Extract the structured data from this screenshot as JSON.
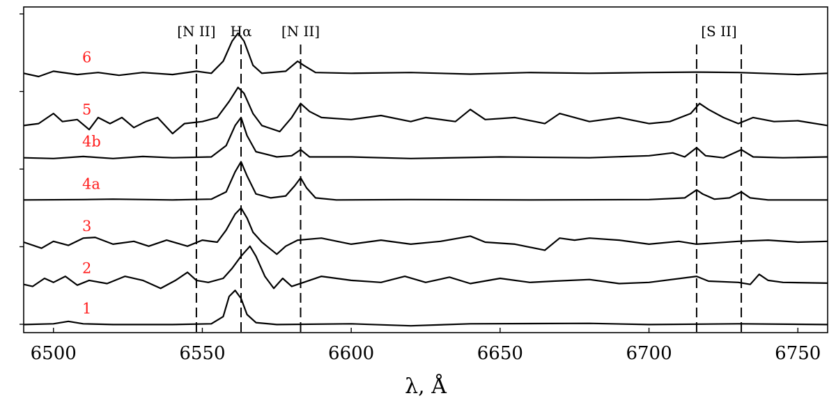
{
  "chart_data": {
    "type": "line",
    "title": "",
    "xlabel": "λ, Å",
    "ylabel": "",
    "xlim": [
      6490,
      6760
    ],
    "ylim": [
      0,
      8.1
    ],
    "xticks": [
      6500,
      6550,
      6600,
      6650,
      6700,
      6750
    ],
    "ytick_count": 5,
    "grid": false,
    "line_markers": [
      {
        "label": "[N II]",
        "x": 6548
      },
      {
        "label": "Hα",
        "x": 6563
      },
      {
        "label": "[N II]",
        "x": 6583
      },
      {
        "label": "[S II]",
        "x": 6716
      },
      {
        "label": "[S II]",
        "x": 6731
      }
    ],
    "marker_labels": [
      {
        "text": "[N II]",
        "x": 6548
      },
      {
        "text": "Hα",
        "x": 6563
      },
      {
        "text": "[N II]",
        "x": 6583
      },
      {
        "text": "[S II]",
        "x": 6723.5
      }
    ],
    "label_color": "#ff1a1a",
    "series": [
      {
        "name": "1",
        "offset": 0.2,
        "points": [
          [
            6490,
            0
          ],
          [
            6500,
            0.02
          ],
          [
            6505,
            0.08
          ],
          [
            6510,
            0.02
          ],
          [
            6520,
            0
          ],
          [
            6540,
            0
          ],
          [
            6553,
            0.02
          ],
          [
            6557,
            0.2
          ],
          [
            6559,
            0.7
          ],
          [
            6561,
            0.85
          ],
          [
            6563,
            0.65
          ],
          [
            6565,
            0.25
          ],
          [
            6568,
            0.05
          ],
          [
            6575,
            0
          ],
          [
            6600,
            0.02
          ],
          [
            6620,
            -0.03
          ],
          [
            6640,
            0.02
          ],
          [
            6680,
            0.03
          ],
          [
            6700,
            0
          ],
          [
            6730,
            0.02
          ],
          [
            6760,
            0
          ]
        ]
      },
      {
        "name": "2",
        "offset": 1.2,
        "points": [
          [
            6490,
            0
          ],
          [
            6493,
            -0.05
          ],
          [
            6497,
            0.15
          ],
          [
            6500,
            0.05
          ],
          [
            6504,
            0.2
          ],
          [
            6508,
            -0.02
          ],
          [
            6512,
            0.1
          ],
          [
            6518,
            0.02
          ],
          [
            6524,
            0.2
          ],
          [
            6530,
            0.1
          ],
          [
            6536,
            -0.1
          ],
          [
            6541,
            0.1
          ],
          [
            6545,
            0.3
          ],
          [
            6548,
            0.1
          ],
          [
            6552,
            0.05
          ],
          [
            6557,
            0.15
          ],
          [
            6560,
            0.4
          ],
          [
            6563,
            0.7
          ],
          [
            6566,
            0.95
          ],
          [
            6568,
            0.7
          ],
          [
            6571,
            0.2
          ],
          [
            6574,
            -0.1
          ],
          [
            6577,
            0.15
          ],
          [
            6580,
            -0.05
          ],
          [
            6584,
            0.05
          ],
          [
            6590,
            0.2
          ],
          [
            6600,
            0.1
          ],
          [
            6610,
            0.05
          ],
          [
            6618,
            0.2
          ],
          [
            6625,
            0.05
          ],
          [
            6633,
            0.18
          ],
          [
            6640,
            0.02
          ],
          [
            6650,
            0.15
          ],
          [
            6660,
            0.05
          ],
          [
            6668,
            0.08
          ],
          [
            6680,
            0.12
          ],
          [
            6690,
            0.02
          ],
          [
            6700,
            0.05
          ],
          [
            6716,
            0.2
          ],
          [
            6720,
            0.08
          ],
          [
            6730,
            0.05
          ],
          [
            6734,
            0
          ],
          [
            6737,
            0.25
          ],
          [
            6740,
            0.1
          ],
          [
            6745,
            0.05
          ],
          [
            6760,
            0.03
          ]
        ]
      },
      {
        "name": "3",
        "offset": 2.25,
        "points": [
          [
            6490,
            0
          ],
          [
            6496,
            -0.15
          ],
          [
            6500,
            0.02
          ],
          [
            6505,
            -0.08
          ],
          [
            6510,
            0.1
          ],
          [
            6514,
            0.12
          ],
          [
            6520,
            -0.05
          ],
          [
            6527,
            0.02
          ],
          [
            6532,
            -0.1
          ],
          [
            6538,
            0.05
          ],
          [
            6545,
            -0.1
          ],
          [
            6550,
            0.05
          ],
          [
            6555,
            0
          ],
          [
            6558,
            0.3
          ],
          [
            6561,
            0.7
          ],
          [
            6563,
            0.85
          ],
          [
            6565,
            0.6
          ],
          [
            6567,
            0.25
          ],
          [
            6570,
            0
          ],
          [
            6575,
            -0.3
          ],
          [
            6578,
            -0.1
          ],
          [
            6582,
            0.05
          ],
          [
            6590,
            0.1
          ],
          [
            6600,
            -0.05
          ],
          [
            6610,
            0.05
          ],
          [
            6620,
            -0.05
          ],
          [
            6630,
            0.02
          ],
          [
            6640,
            0.15
          ],
          [
            6645,
            0
          ],
          [
            6655,
            -0.05
          ],
          [
            6665,
            -0.2
          ],
          [
            6670,
            0.1
          ],
          [
            6675,
            0.05
          ],
          [
            6680,
            0.1
          ],
          [
            6690,
            0.05
          ],
          [
            6700,
            -0.05
          ],
          [
            6710,
            0.02
          ],
          [
            6716,
            -0.05
          ],
          [
            6730,
            0.02
          ],
          [
            6740,
            0.05
          ],
          [
            6750,
            0
          ],
          [
            6760,
            0.02
          ]
        ]
      },
      {
        "name": "4a",
        "offset": 3.3,
        "points": [
          [
            6490,
            0
          ],
          [
            6510,
            0.01
          ],
          [
            6520,
            0.02
          ],
          [
            6540,
            0
          ],
          [
            6553,
            0.02
          ],
          [
            6558,
            0.2
          ],
          [
            6561,
            0.7
          ],
          [
            6563,
            0.95
          ],
          [
            6565,
            0.6
          ],
          [
            6568,
            0.15
          ],
          [
            6573,
            0.05
          ],
          [
            6578,
            0.1
          ],
          [
            6581,
            0.35
          ],
          [
            6583,
            0.55
          ],
          [
            6585,
            0.3
          ],
          [
            6588,
            0.05
          ],
          [
            6595,
            0
          ],
          [
            6620,
            0.01
          ],
          [
            6660,
            0
          ],
          [
            6700,
            0.01
          ],
          [
            6712,
            0.05
          ],
          [
            6716,
            0.25
          ],
          [
            6718,
            0.15
          ],
          [
            6722,
            0.02
          ],
          [
            6727,
            0.05
          ],
          [
            6731,
            0.2
          ],
          [
            6734,
            0.05
          ],
          [
            6740,
            0
          ],
          [
            6760,
            0
          ]
        ]
      },
      {
        "name": "4b",
        "offset": 4.35,
        "points": [
          [
            6490,
            0
          ],
          [
            6500,
            -0.02
          ],
          [
            6510,
            0.03
          ],
          [
            6520,
            -0.02
          ],
          [
            6530,
            0.03
          ],
          [
            6540,
            0
          ],
          [
            6553,
            0.02
          ],
          [
            6558,
            0.3
          ],
          [
            6561,
            0.8
          ],
          [
            6563,
            1.0
          ],
          [
            6565,
            0.55
          ],
          [
            6568,
            0.15
          ],
          [
            6575,
            0.02
          ],
          [
            6580,
            0.05
          ],
          [
            6583,
            0.2
          ],
          [
            6586,
            0.02
          ],
          [
            6600,
            0.02
          ],
          [
            6620,
            -0.02
          ],
          [
            6650,
            0.02
          ],
          [
            6680,
            0
          ],
          [
            6700,
            0.05
          ],
          [
            6708,
            0.12
          ],
          [
            6712,
            0.02
          ],
          [
            6716,
            0.25
          ],
          [
            6719,
            0.05
          ],
          [
            6725,
            0
          ],
          [
            6731,
            0.2
          ],
          [
            6735,
            0.02
          ],
          [
            6745,
            0
          ],
          [
            6760,
            0.02
          ]
        ]
      },
      {
        "name": "5",
        "offset": 5.15,
        "points": [
          [
            6490,
            0
          ],
          [
            6495,
            0.05
          ],
          [
            6500,
            0.3
          ],
          [
            6503,
            0.1
          ],
          [
            6508,
            0.15
          ],
          [
            6512,
            -0.1
          ],
          [
            6515,
            0.2
          ],
          [
            6519,
            0.05
          ],
          [
            6523,
            0.2
          ],
          [
            6527,
            -0.05
          ],
          [
            6531,
            0.1
          ],
          [
            6535,
            0.2
          ],
          [
            6540,
            -0.2
          ],
          [
            6544,
            0.05
          ],
          [
            6550,
            0.1
          ],
          [
            6555,
            0.2
          ],
          [
            6559,
            0.6
          ],
          [
            6562,
            0.95
          ],
          [
            6564,
            0.8
          ],
          [
            6567,
            0.3
          ],
          [
            6570,
            0
          ],
          [
            6576,
            -0.15
          ],
          [
            6580,
            0.2
          ],
          [
            6583,
            0.55
          ],
          [
            6586,
            0.35
          ],
          [
            6590,
            0.2
          ],
          [
            6600,
            0.15
          ],
          [
            6610,
            0.25
          ],
          [
            6620,
            0.1
          ],
          [
            6625,
            0.2
          ],
          [
            6635,
            0.1
          ],
          [
            6640,
            0.4
          ],
          [
            6645,
            0.15
          ],
          [
            6655,
            0.2
          ],
          [
            6665,
            0.05
          ],
          [
            6670,
            0.3
          ],
          [
            6680,
            0.1
          ],
          [
            6690,
            0.2
          ],
          [
            6700,
            0.05
          ],
          [
            6707,
            0.1
          ],
          [
            6714,
            0.3
          ],
          [
            6717,
            0.55
          ],
          [
            6720,
            0.4
          ],
          [
            6725,
            0.2
          ],
          [
            6730,
            0.05
          ],
          [
            6735,
            0.2
          ],
          [
            6742,
            0.1
          ],
          [
            6750,
            0.12
          ],
          [
            6760,
            0
          ]
        ]
      },
      {
        "name": "6",
        "offset": 6.45,
        "points": [
          [
            6490,
            0
          ],
          [
            6495,
            -0.08
          ],
          [
            6500,
            0.05
          ],
          [
            6508,
            -0.03
          ],
          [
            6515,
            0.02
          ],
          [
            6522,
            -0.05
          ],
          [
            6530,
            0.02
          ],
          [
            6540,
            -0.03
          ],
          [
            6548,
            0.05
          ],
          [
            6553,
            0
          ],
          [
            6557,
            0.3
          ],
          [
            6560,
            0.8
          ],
          [
            6562,
            1.0
          ],
          [
            6564,
            0.8
          ],
          [
            6567,
            0.2
          ],
          [
            6570,
            0
          ],
          [
            6578,
            0.05
          ],
          [
            6582,
            0.3
          ],
          [
            6584,
            0.2
          ],
          [
            6588,
            0.02
          ],
          [
            6600,
            0
          ],
          [
            6620,
            0.02
          ],
          [
            6640,
            -0.02
          ],
          [
            6660,
            0.02
          ],
          [
            6680,
            0
          ],
          [
            6700,
            0.02
          ],
          [
            6716,
            0.03
          ],
          [
            6730,
            0.02
          ],
          [
            6750,
            -0.03
          ],
          [
            6760,
            0
          ]
        ]
      }
    ]
  }
}
